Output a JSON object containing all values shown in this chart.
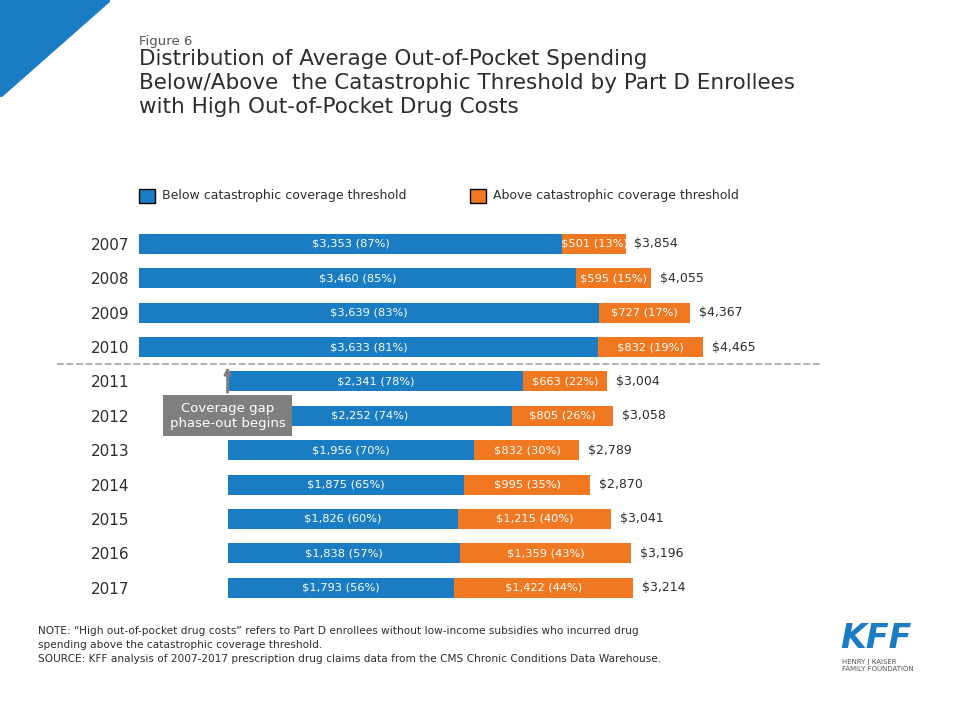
{
  "figure_label": "Figure 6",
  "title": "Distribution of Average Out-of-Pocket Spending\nBelow/Above  the Catastrophic Threshold by Part D Enrollees\nwith High Out-of-Pocket Drug Costs",
  "legend_blue": "Below catastrophic coverage threshold",
  "legend_orange": "Above catastrophic coverage threshold",
  "years": [
    "2007",
    "2008",
    "2009",
    "2010",
    "2011",
    "2012",
    "2013",
    "2014",
    "2015",
    "2016",
    "2017"
  ],
  "blue_values": [
    3353,
    3460,
    3639,
    3633,
    2341,
    2252,
    1956,
    1875,
    1826,
    1838,
    1793
  ],
  "orange_values": [
    501,
    595,
    727,
    832,
    663,
    805,
    832,
    995,
    1215,
    1359,
    1422
  ],
  "blue_labels": [
    "$3,353 (87%)",
    "$3,460 (85%)",
    "$3,639 (83%)",
    "$3,633 (81%)",
    "$2,341 (78%)",
    "$2,252 (74%)",
    "$1,956 (70%)",
    "$1,875 (65%)",
    "$1,826 (60%)",
    "$1,838 (57%)",
    "$1,793 (56%)"
  ],
  "orange_labels": [
    "$501 (13%)",
    "$595 (15%)",
    "$727 (17%)",
    "$832 (19%)",
    "$663 (22%)",
    "$805 (26%)",
    "$832 (30%)",
    "$995 (35%)",
    "$1,215 (40%)",
    "$1,359 (43%)",
    "$1,422 (44%)"
  ],
  "totals": [
    "$3,854",
    "$4,055",
    "$4,367",
    "$4,465",
    "$3,004",
    "$3,058",
    "$2,789",
    "$2,870",
    "$3,041",
    "$3,196",
    "$3,214"
  ],
  "bar_offsets": [
    0,
    0,
    0,
    0,
    700,
    700,
    700,
    700,
    700,
    700,
    700
  ],
  "blue_color": "#1a7dc4",
  "orange_color": "#f07820",
  "annotation_box_color": "#7f7f7f",
  "background_color": "#ffffff",
  "dashed_line_after_index": 3,
  "annotation_text": "Coverage gap\nphase-out begins",
  "note_text": "NOTE: “High out-of-pocket drug costs” refers to Part D enrollees without low-income subsidies who incurred drug\nspending above the catastrophic coverage threshold.\nSOURCE: KFF analysis of 2007-2017 prescription drug claims data from the CMS Chronic Conditions Data Warehouse.",
  "title_color": "#2d2d2d",
  "fig_label_color": "#555555",
  "bar_height": 0.58,
  "xlim_max": 5400,
  "triangle_color": "#1a7dc4"
}
